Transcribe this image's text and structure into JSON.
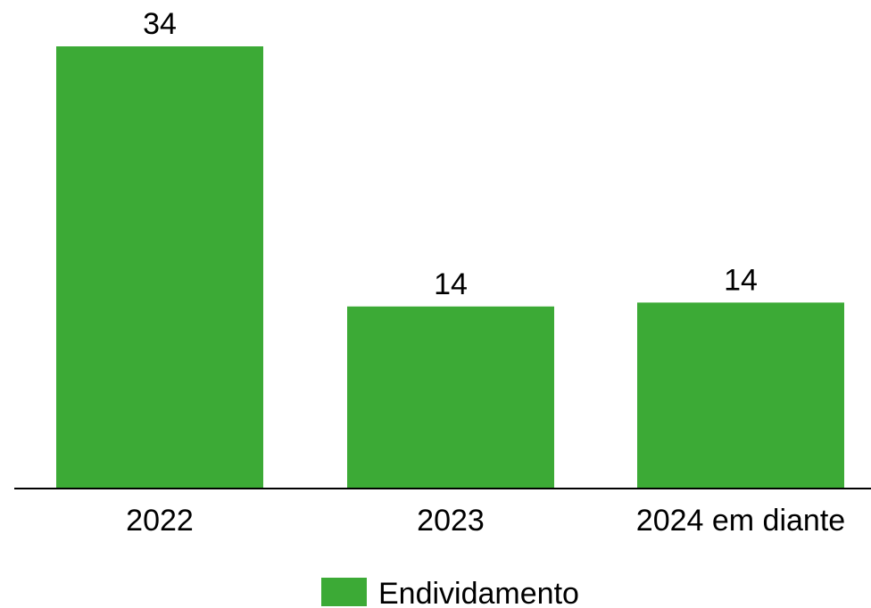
{
  "chart_data": {
    "type": "bar",
    "categories": [
      "2022",
      "2023",
      "2024 em diante"
    ],
    "series": [
      {
        "name": "Endividamento",
        "values": [
          34,
          14,
          14.3
        ]
      }
    ],
    "data_labels": [
      "34",
      "14",
      "14"
    ],
    "ylim": [
      0,
      34
    ],
    "grid": false,
    "legend": {
      "position": "bottom-center"
    },
    "colors": {
      "bar": "#3caa36",
      "axis": "#000000",
      "text": "#000000"
    }
  }
}
